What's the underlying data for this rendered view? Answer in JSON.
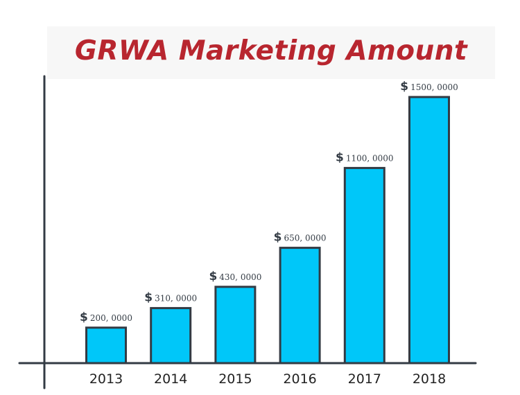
{
  "chart_data": {
    "type": "bar",
    "title": "GRWA Marketing Amount",
    "xlabel": "",
    "ylabel": "",
    "categories": [
      "2013",
      "2014",
      "2015",
      "2016",
      "2017",
      "2018"
    ],
    "values": [
      2000000,
      3100000,
      4300000,
      6500000,
      11000000,
      15000000
    ],
    "data_labels": [
      "200, 0000",
      "310, 0000",
      "430, 0000",
      "650, 0000",
      "1100, 0000",
      "1500, 0000"
    ],
    "value_prefix": "$",
    "bar_color": "#00c7f9",
    "outline_color": "#333b44",
    "title_color": "#b8262f",
    "grid": false,
    "legend": "none"
  }
}
